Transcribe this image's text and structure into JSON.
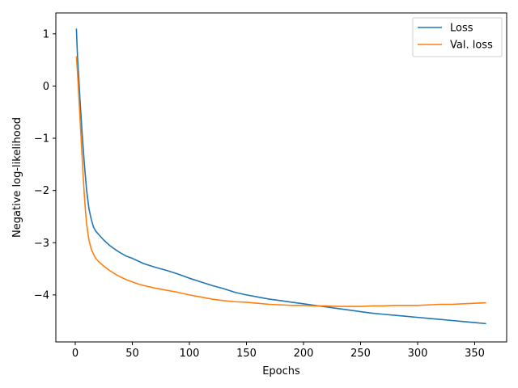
{
  "chart_data": {
    "type": "line",
    "title": "",
    "xlabel": "Epochs",
    "ylabel": "Negative log-likelihood",
    "xlim": [
      -17,
      378
    ],
    "ylim": [
      -4.9,
      1.4
    ],
    "xticks": [
      0,
      50,
      100,
      150,
      200,
      250,
      300,
      350
    ],
    "xtick_labels": [
      "0",
      "50",
      "100",
      "150",
      "200",
      "250",
      "300",
      "350"
    ],
    "yticks": [
      1,
      0,
      -1,
      -2,
      -3,
      -4
    ],
    "ytick_labels": [
      "1",
      "0",
      "−1",
      "−2",
      "−3",
      "−4"
    ],
    "grid": false,
    "legend_position": "upper right",
    "series": [
      {
        "name": "Loss",
        "color": "#1f77b4",
        "points": [
          [
            1,
            1.1
          ],
          [
            2,
            0.55
          ],
          [
            3,
            0.2
          ],
          [
            4,
            -0.2
          ],
          [
            5,
            -0.55
          ],
          [
            6,
            -0.9
          ],
          [
            7,
            -1.2
          ],
          [
            8,
            -1.5
          ],
          [
            9,
            -1.75
          ],
          [
            10,
            -2.0
          ],
          [
            12,
            -2.35
          ],
          [
            14,
            -2.55
          ],
          [
            16,
            -2.7
          ],
          [
            18,
            -2.78
          ],
          [
            20,
            -2.83
          ],
          [
            25,
            -2.95
          ],
          [
            30,
            -3.05
          ],
          [
            35,
            -3.13
          ],
          [
            40,
            -3.2
          ],
          [
            45,
            -3.26
          ],
          [
            50,
            -3.3
          ],
          [
            55,
            -3.35
          ],
          [
            60,
            -3.4
          ],
          [
            70,
            -3.47
          ],
          [
            80,
            -3.53
          ],
          [
            90,
            -3.6
          ],
          [
            100,
            -3.68
          ],
          [
            110,
            -3.75
          ],
          [
            120,
            -3.82
          ],
          [
            130,
            -3.88
          ],
          [
            140,
            -3.95
          ],
          [
            150,
            -4.0
          ],
          [
            160,
            -4.04
          ],
          [
            170,
            -4.08
          ],
          [
            180,
            -4.11
          ],
          [
            190,
            -4.14
          ],
          [
            200,
            -4.17
          ],
          [
            210,
            -4.2
          ],
          [
            220,
            -4.23
          ],
          [
            230,
            -4.26
          ],
          [
            240,
            -4.29
          ],
          [
            250,
            -4.32
          ],
          [
            260,
            -4.35
          ],
          [
            270,
            -4.37
          ],
          [
            280,
            -4.39
          ],
          [
            290,
            -4.41
          ],
          [
            300,
            -4.43
          ],
          [
            310,
            -4.45
          ],
          [
            320,
            -4.47
          ],
          [
            330,
            -4.49
          ],
          [
            340,
            -4.51
          ],
          [
            350,
            -4.53
          ],
          [
            360,
            -4.55
          ]
        ]
      },
      {
        "name": "Val. loss",
        "color": "#ff7f0e",
        "points": [
          [
            1,
            0.57
          ],
          [
            2,
            0.25
          ],
          [
            3,
            -0.15
          ],
          [
            4,
            -0.55
          ],
          [
            5,
            -0.95
          ],
          [
            6,
            -1.35
          ],
          [
            7,
            -1.75
          ],
          [
            8,
            -2.1
          ],
          [
            9,
            -2.4
          ],
          [
            10,
            -2.65
          ],
          [
            12,
            -2.95
          ],
          [
            14,
            -3.12
          ],
          [
            16,
            -3.22
          ],
          [
            18,
            -3.3
          ],
          [
            20,
            -3.35
          ],
          [
            25,
            -3.45
          ],
          [
            30,
            -3.53
          ],
          [
            35,
            -3.6
          ],
          [
            40,
            -3.66
          ],
          [
            45,
            -3.71
          ],
          [
            50,
            -3.75
          ],
          [
            55,
            -3.79
          ],
          [
            60,
            -3.82
          ],
          [
            70,
            -3.87
          ],
          [
            80,
            -3.91
          ],
          [
            90,
            -3.95
          ],
          [
            100,
            -4.0
          ],
          [
            110,
            -4.04
          ],
          [
            120,
            -4.08
          ],
          [
            130,
            -4.11
          ],
          [
            140,
            -4.13
          ],
          [
            150,
            -4.14
          ],
          [
            160,
            -4.16
          ],
          [
            170,
            -4.18
          ],
          [
            180,
            -4.19
          ],
          [
            190,
            -4.2
          ],
          [
            200,
            -4.2
          ],
          [
            210,
            -4.21
          ],
          [
            220,
            -4.21
          ],
          [
            230,
            -4.22
          ],
          [
            240,
            -4.22
          ],
          [
            250,
            -4.22
          ],
          [
            260,
            -4.21
          ],
          [
            270,
            -4.21
          ],
          [
            280,
            -4.2
          ],
          [
            290,
            -4.2
          ],
          [
            300,
            -4.2
          ],
          [
            310,
            -4.19
          ],
          [
            320,
            -4.18
          ],
          [
            330,
            -4.18
          ],
          [
            340,
            -4.17
          ],
          [
            350,
            -4.16
          ],
          [
            360,
            -4.15
          ]
        ]
      }
    ]
  }
}
